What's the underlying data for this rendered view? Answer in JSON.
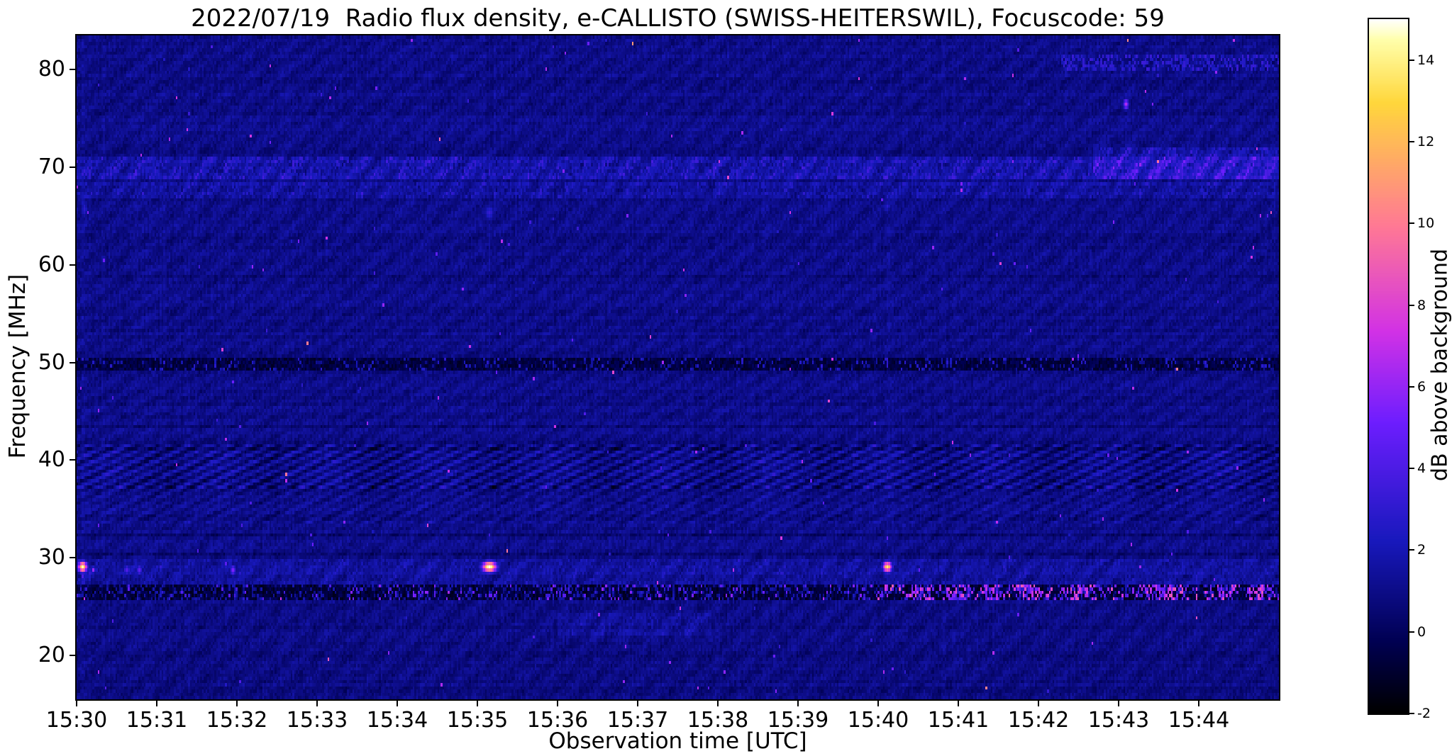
{
  "figure": {
    "background": "#ffffff"
  },
  "chart_data": {
    "type": "heatmap",
    "title": "2022/07/19  Radio flux density, e-CALLISTO (SWISS-HEITERSWIL), Focuscode: 59",
    "xlabel": "Observation time [UTC]",
    "ylabel": "Frequency [MHz]",
    "x_ticks": [
      "15:30",
      "15:31",
      "15:32",
      "15:33",
      "15:34",
      "15:35",
      "15:36",
      "15:37",
      "15:38",
      "15:39",
      "15:40",
      "15:41",
      "15:42",
      "15:43",
      "15:44"
    ],
    "x_span_minutes": 15,
    "y_ticks": [
      20,
      30,
      40,
      50,
      60,
      70,
      80
    ],
    "y_range_mhz": [
      15.5,
      83.5
    ],
    "grid": {
      "cols": 680,
      "rows": 208
    },
    "rng_seed": 20220719,
    "colorbar": {
      "label": "dB above background",
      "ticks": [
        14,
        12,
        10,
        8,
        6,
        4,
        2,
        0,
        -2
      ],
      "range_db": [
        -2,
        15
      ],
      "colormap_stops": [
        [
          0.0,
          0,
          0,
          0
        ],
        [
          0.1,
          0,
          0,
          80
        ],
        [
          0.25,
          25,
          25,
          190
        ],
        [
          0.42,
          110,
          30,
          255
        ],
        [
          0.55,
          210,
          50,
          230
        ],
        [
          0.7,
          255,
          120,
          150
        ],
        [
          0.88,
          255,
          215,
          60
        ],
        [
          0.97,
          255,
          255,
          170
        ],
        [
          1.0,
          255,
          255,
          255
        ]
      ]
    },
    "background_noise": {
      "base_db": 0.45,
      "noise_db": 1.0,
      "ripple_db": 0.28
    },
    "bands": [
      {
        "name": "rfi-70mhz",
        "type": "speckle",
        "f0": 69.0,
        "f1": 70.8,
        "add_db": 0.7,
        "speckle_db": 1.7
      },
      {
        "name": "rfi-67mhz",
        "type": "speckle",
        "f0": 67.0,
        "f1": 68.3,
        "add_db": 0.4,
        "speckle_db": 1.2
      },
      {
        "name": "dark-50mhz",
        "type": "dark",
        "f0": 49.5,
        "f1": 50.2,
        "set_db": -1.3,
        "speckle_db": 1.4,
        "dash_prob": 0.15,
        "dash_db": 2.2
      },
      {
        "name": "herringbone-39mhz",
        "type": "herringbone",
        "f0": 37.3,
        "f1": 41.6,
        "amp_db": 1.0
      },
      {
        "name": "herringbone-35mhz",
        "type": "herringbone",
        "f0": 33.8,
        "f1": 37.3,
        "amp_db": 0.45
      },
      {
        "name": "band-28mhz",
        "type": "speckle",
        "f0": 27.4,
        "f1": 29.6,
        "add_db": 0.35,
        "speckle_db": 0.9
      },
      {
        "name": "burst-26mhz",
        "type": "burst",
        "f0": 25.9,
        "f1": 27.0,
        "set_db": -1.5,
        "speckle_db": 1.5,
        "blue_prob": 0.22,
        "blue_v0": 0.8,
        "blue_v1": 2.0,
        "windows": [
          {
            "t0": 0.0,
            "t1": 3.3,
            "prob": 0.05,
            "v0": 2.0,
            "v1": 5.0
          },
          {
            "t0": 3.3,
            "t1": 10.0,
            "prob": 0.14,
            "v0": 1.8,
            "v1": 6.0
          },
          {
            "t0": 10.0,
            "t1": 15.0,
            "prob": 0.42,
            "v0": 2.5,
            "v1": 9.0
          }
        ]
      },
      {
        "name": "dashes-80mhz-late",
        "type": "dashes",
        "f0": 80.1,
        "f1": 81.3,
        "t0": 12.3,
        "t1": 15.0,
        "prob": 0.45,
        "v0": 1.8,
        "v1": 3.4
      },
      {
        "name": "rfi-70mhz-late",
        "type": "speckle",
        "f0": 68.8,
        "f1": 72.0,
        "t0": 12.7,
        "t1": 15.0,
        "add_db": 0.8,
        "speckle_db": 1.9
      },
      {
        "name": "fuzz-23mhz",
        "type": "speckle",
        "f0": 22.3,
        "f1": 24.2,
        "t0": 6.0,
        "t1": 7.9,
        "add_db": 0.45,
        "speckle_db": 0.7
      }
    ],
    "column_streaks": [
      {
        "t_min": 5.15,
        "f0": 28.0,
        "f1": 72.0,
        "add_db": 0.35
      },
      {
        "t_min": 10.12,
        "f0": 28.0,
        "f1": 70.0,
        "add_db": 0.25
      },
      {
        "t_min": 0.07,
        "f0": 16.0,
        "f1": 83.0,
        "add_db": 0.3
      }
    ],
    "blobs": [
      {
        "t_min": 0.08,
        "f_mhz": 29.0,
        "dt_min": 0.06,
        "df_mhz": 0.7,
        "v_db": 14.5
      },
      {
        "t_min": 0.62,
        "f_mhz": 28.9,
        "dt_min": 0.035,
        "df_mhz": 0.7,
        "v_db": 4.2
      },
      {
        "t_min": 0.78,
        "f_mhz": 28.9,
        "dt_min": 0.035,
        "df_mhz": 0.7,
        "v_db": 4.2
      },
      {
        "t_min": 1.95,
        "f_mhz": 28.9,
        "dt_min": 0.05,
        "df_mhz": 0.55,
        "v_db": 5.2
      },
      {
        "t_min": 5.15,
        "f_mhz": 29.0,
        "dt_min": 0.1,
        "df_mhz": 0.8,
        "v_db": 15.0
      },
      {
        "t_min": 5.15,
        "f_mhz": 32.3,
        "dt_min": 0.03,
        "df_mhz": 0.35,
        "v_db": 3.4
      },
      {
        "t_min": 10.12,
        "f_mhz": 29.0,
        "dt_min": 0.07,
        "df_mhz": 0.75,
        "v_db": 13.5
      },
      {
        "t_min": 10.12,
        "f_mhz": 31.9,
        "dt_min": 0.03,
        "df_mhz": 0.4,
        "v_db": 4.6
      },
      {
        "t_min": 0.1,
        "f_mhz": 65.6,
        "dt_min": 0.05,
        "df_mhz": 0.9,
        "v_db": 2.8
      },
      {
        "t_min": 5.15,
        "f_mhz": 65.5,
        "dt_min": 0.06,
        "df_mhz": 1.0,
        "v_db": 3.0
      },
      {
        "t_min": 10.12,
        "f_mhz": 66.0,
        "dt_min": 0.05,
        "df_mhz": 0.8,
        "v_db": 2.7
      },
      {
        "t_min": 13.1,
        "f_mhz": 76.6,
        "dt_min": 0.035,
        "df_mhz": 0.5,
        "v_db": 6.5
      },
      {
        "t_min": 13.3,
        "f_mhz": 70.7,
        "dt_min": 0.05,
        "df_mhz": 0.9,
        "v_db": 4.2
      },
      {
        "t_min": 6.85,
        "f_mhz": 20.8,
        "dt_min": 0.025,
        "df_mhz": 0.35,
        "v_db": 6.0
      },
      {
        "t_min": 0.35,
        "f_mhz": 60.5,
        "dt_min": 0.02,
        "df_mhz": 0.3,
        "v_db": 5.0
      },
      {
        "t_min": 0.45,
        "f_mhz": 46.4,
        "dt_min": 0.02,
        "df_mhz": 0.3,
        "v_db": 4.2
      },
      {
        "t_min": 3.35,
        "f_mhz": 33.6,
        "dt_min": 0.02,
        "df_mhz": 0.3,
        "v_db": 5.5
      }
    ],
    "speck_count": 240
  }
}
